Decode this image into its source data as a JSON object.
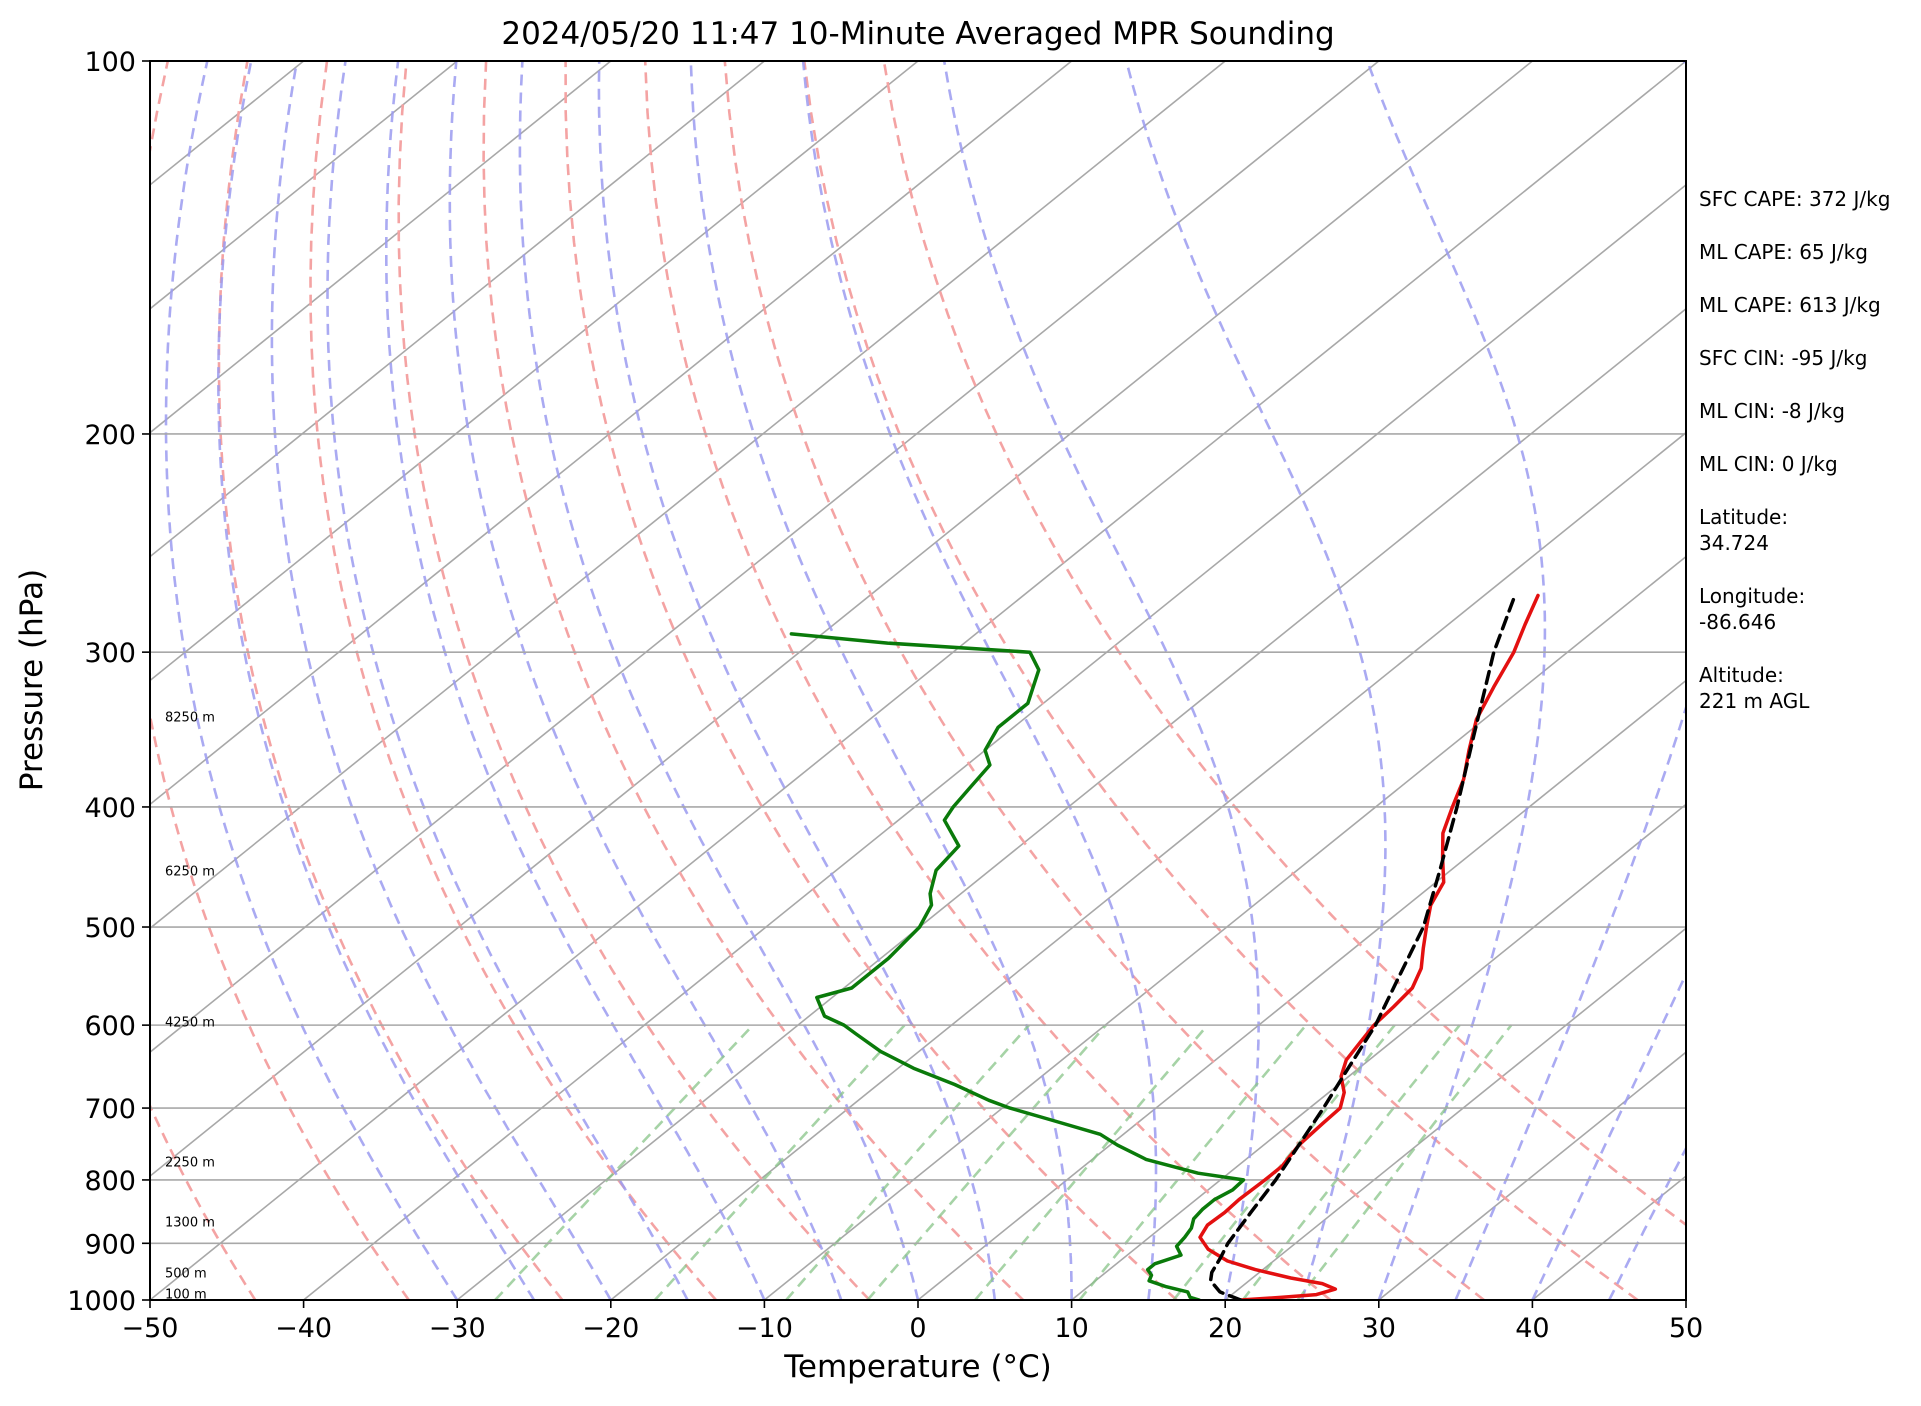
{
  "chart_data": {
    "type": "line",
    "subtype": "skew-t log-p",
    "title": "2024/05/20 11:47 10-Minute Averaged MPR Sounding",
    "xlabel": "Temperature (°C)",
    "ylabel": "Pressure (hPa)",
    "xlim": [
      -50,
      50
    ],
    "ylim": [
      1000,
      100
    ],
    "y_scale": "log",
    "x_ticks": [
      -50,
      -40,
      -30,
      -20,
      -10,
      0,
      10,
      20,
      30,
      40,
      50
    ],
    "x_tick_labels": [
      "−50",
      "−40",
      "−30",
      "−20",
      "−10",
      "0",
      "10",
      "20",
      "30",
      "40",
      "50"
    ],
    "y_ticks": [
      1000,
      900,
      800,
      700,
      600,
      500,
      400,
      300,
      200,
      100
    ],
    "y_tick_labels": [
      "1000",
      "900",
      "800",
      "700",
      "600",
      "500",
      "400",
      "300",
      "200",
      "100"
    ],
    "height_labels": [
      {
        "text": "100 m",
        "p": 988
      },
      {
        "text": "500 m",
        "p": 950
      },
      {
        "text": "1300 m",
        "p": 864
      },
      {
        "text": "2250 m",
        "p": 773
      },
      {
        "text": "4250 m",
        "p": 596
      },
      {
        "text": "6250 m",
        "p": 450
      },
      {
        "text": "8250 m",
        "p": 338
      }
    ],
    "grid": true,
    "background_lines": {
      "isotherms": {
        "color": "#a8a8a8",
        "values": [
          -150,
          -140,
          -130,
          -120,
          -110,
          -100,
          -90,
          -80,
          -70,
          -60,
          -50,
          -40,
          -30,
          -20,
          -10,
          0,
          10,
          20,
          30,
          40,
          50
        ]
      },
      "dry_adiabats": {
        "color": "#f4a3a3",
        "theta_k": [
          230,
          240,
          250,
          260,
          270,
          280,
          290,
          300,
          310,
          320,
          330
        ]
      },
      "moist_adiabats": {
        "color": "#9b9bf0",
        "start_t_c": [
          -30,
          -25,
          -20,
          -15,
          -10,
          -5,
          0,
          5,
          10,
          15,
          20,
          25,
          30,
          35,
          40,
          45
        ]
      },
      "mixing_ratio_lines": {
        "color": "#88c488",
        "g_per_kg": [
          0.4,
          1,
          2,
          3,
          5,
          8,
          12,
          16,
          20
        ],
        "top_p": 600
      }
    },
    "series": [
      {
        "role": "temperature",
        "color": "#e31010",
        "points": [
          [
            1000,
            21.0
          ],
          [
            995,
            23.5
          ],
          [
            990,
            25.5
          ],
          [
            980,
            26.3
          ],
          [
            970,
            25.0
          ],
          [
            960,
            22.5
          ],
          [
            945,
            19.5
          ],
          [
            930,
            17.0
          ],
          [
            910,
            14.8
          ],
          [
            890,
            13.3
          ],
          [
            870,
            12.8
          ],
          [
            850,
            12.9
          ],
          [
            830,
            12.8
          ],
          [
            800,
            12.9
          ],
          [
            780,
            12.9
          ],
          [
            750,
            12.3
          ],
          [
            720,
            12.1
          ],
          [
            700,
            12.0
          ],
          [
            680,
            11.0
          ],
          [
            660,
            9.5
          ],
          [
            640,
            8.5
          ],
          [
            620,
            8.0
          ],
          [
            600,
            7.5
          ],
          [
            580,
            7.3
          ],
          [
            560,
            7.0
          ],
          [
            540,
            6.0
          ],
          [
            520,
            4.5
          ],
          [
            500,
            3.0
          ],
          [
            480,
            1.5
          ],
          [
            460,
            0.5
          ],
          [
            440,
            -1.5
          ],
          [
            420,
            -3.5
          ],
          [
            400,
            -5.0
          ],
          [
            380,
            -6.5
          ],
          [
            360,
            -8.5
          ],
          [
            340,
            -10.5
          ],
          [
            320,
            -12.0
          ],
          [
            300,
            -13.5
          ],
          [
            285,
            -15.0
          ],
          [
            270,
            -16.5
          ]
        ]
      },
      {
        "role": "dewpoint",
        "color": "#0a7a0a",
        "points": [
          [
            1000,
            18.3
          ],
          [
            995,
            17.5
          ],
          [
            985,
            16.9
          ],
          [
            975,
            15.0
          ],
          [
            965,
            13.5
          ],
          [
            955,
            13.2
          ],
          [
            945,
            12.5
          ],
          [
            935,
            12.5
          ],
          [
            920,
            13.5
          ],
          [
            905,
            12.5
          ],
          [
            890,
            12.3
          ],
          [
            875,
            12.0
          ],
          [
            860,
            11.4
          ],
          [
            845,
            11.2
          ],
          [
            830,
            11.2
          ],
          [
            815,
            11.6
          ],
          [
            800,
            11.5
          ],
          [
            790,
            8.0
          ],
          [
            770,
            3.5
          ],
          [
            750,
            0.5
          ],
          [
            735,
            -1.5
          ],
          [
            715,
            -6.0
          ],
          [
            700,
            -9.5
          ],
          [
            690,
            -11.5
          ],
          [
            670,
            -15.0
          ],
          [
            650,
            -19.0
          ],
          [
            630,
            -22.5
          ],
          [
            610,
            -25.5
          ],
          [
            600,
            -27.0
          ],
          [
            590,
            -29.0
          ],
          [
            570,
            -31.0
          ],
          [
            560,
            -29.5
          ],
          [
            530,
            -29.5
          ],
          [
            500,
            -30.0
          ],
          [
            480,
            -31.0
          ],
          [
            470,
            -32.0
          ],
          [
            450,
            -33.5
          ],
          [
            430,
            -34.0
          ],
          [
            410,
            -37.0
          ],
          [
            400,
            -37.5
          ],
          [
            385,
            -38.0
          ],
          [
            370,
            -38.5
          ],
          [
            360,
            -40.0
          ],
          [
            345,
            -41.0
          ],
          [
            330,
            -41.0
          ],
          [
            310,
            -43.0
          ],
          [
            300,
            -45.0
          ],
          [
            295,
            -55.0
          ],
          [
            290,
            -62.0
          ]
        ]
      },
      {
        "role": "parcel",
        "color": "#000000",
        "style": "dashed",
        "points": [
          [
            1000,
            21.0
          ],
          [
            985,
            19.0
          ],
          [
            965,
            17.5
          ],
          [
            950,
            16.9
          ],
          [
            925,
            16.3
          ],
          [
            900,
            15.6
          ],
          [
            850,
            14.6
          ],
          [
            800,
            13.6
          ],
          [
            750,
            12.3
          ],
          [
            700,
            10.9
          ],
          [
            650,
            9.3
          ],
          [
            600,
            7.6
          ],
          [
            550,
            5.3
          ],
          [
            500,
            2.8
          ],
          [
            450,
            -0.7
          ],
          [
            400,
            -4.7
          ],
          [
            350,
            -9.4
          ],
          [
            300,
            -14.8
          ],
          [
            270,
            -18.0
          ]
        ]
      }
    ],
    "annotations": [
      {
        "label": "SFC CAPE:",
        "value": "372 J/kg"
      },
      {
        "label": "ML CAPE:",
        "value": "65 J/kg"
      },
      {
        "label": "ML CAPE:",
        "value": "613 J/kg"
      },
      {
        "label": "SFC CIN:",
        "value": "-95 J/kg"
      },
      {
        "label": "ML CIN:",
        "value": "-8 J/kg"
      },
      {
        "label": "ML CIN:",
        "value": "0 J/kg"
      },
      {
        "label": "Latitude:",
        "value": "34.724"
      },
      {
        "label": "Longitude:",
        "value": "-86.646"
      },
      {
        "label": "Altitude:",
        "value": "221 m AGL"
      }
    ]
  }
}
